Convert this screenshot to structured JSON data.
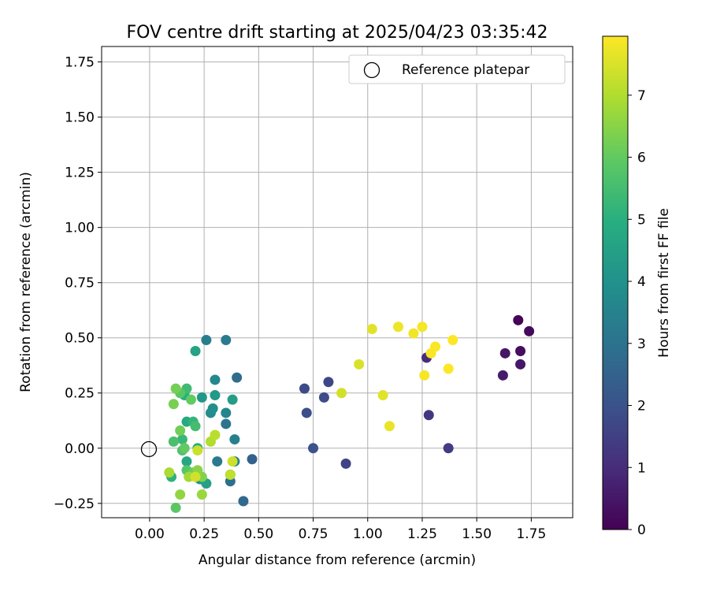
{
  "chart_data": {
    "type": "scatter",
    "title": "FOV centre drift starting at 2025/04/23 03:35:42",
    "xlabel": "Angular distance from reference (arcmin)",
    "ylabel": "Rotation from reference (arcmin)",
    "xlim": [
      -0.22,
      1.94
    ],
    "ylim": [
      -0.315,
      1.82
    ],
    "xticks": [
      "0.00",
      "0.25",
      "0.50",
      "0.75",
      "1.00",
      "1.25",
      "1.50",
      "1.75"
    ],
    "xtick_values": [
      0,
      0.25,
      0.5,
      0.75,
      1.0,
      1.25,
      1.5,
      1.75
    ],
    "yticks": [
      "−0.25",
      "0.00",
      "0.25",
      "0.50",
      "0.75",
      "1.00",
      "1.25",
      "1.50",
      "1.75"
    ],
    "ytick_values": [
      -0.25,
      0,
      0.25,
      0.5,
      0.75,
      1.0,
      1.25,
      1.5,
      1.75
    ],
    "grid": true,
    "legend": {
      "position": "top-right",
      "label": "Reference platepar"
    },
    "reference_point": {
      "x": 0,
      "y": 0
    },
    "colorbar": {
      "label": "Hours from first FF file",
      "colormap": "viridis",
      "range": [
        0,
        7.95
      ],
      "ticks": [
        "0",
        "1",
        "2",
        "3",
        "4",
        "5",
        "6",
        "7"
      ],
      "tick_values": [
        0,
        1,
        2,
        3,
        4,
        5,
        6,
        7
      ]
    },
    "points": [
      {
        "x": 1.69,
        "y": 0.58,
        "hours": 0.1
      },
      {
        "x": 1.74,
        "y": 0.53,
        "hours": 0.2
      },
      {
        "x": 1.7,
        "y": 0.44,
        "hours": 0.3
      },
      {
        "x": 1.63,
        "y": 0.43,
        "hours": 0.45
      },
      {
        "x": 1.7,
        "y": 0.38,
        "hours": 0.5
      },
      {
        "x": 1.62,
        "y": 0.33,
        "hours": 0.6
      },
      {
        "x": 1.27,
        "y": 0.41,
        "hours": 1.0
      },
      {
        "x": 1.28,
        "y": 0.15,
        "hours": 1.3
      },
      {
        "x": 1.37,
        "y": 0.0,
        "hours": 1.4
      },
      {
        "x": 0.9,
        "y": -0.07,
        "hours": 1.6
      },
      {
        "x": 0.82,
        "y": 0.3,
        "hours": 1.7
      },
      {
        "x": 0.71,
        "y": 0.27,
        "hours": 1.8
      },
      {
        "x": 0.8,
        "y": 0.23,
        "hours": 1.85
      },
      {
        "x": 0.72,
        "y": 0.16,
        "hours": 1.9
      },
      {
        "x": 0.75,
        "y": 0.0,
        "hours": 2.0
      },
      {
        "x": 0.47,
        "y": -0.05,
        "hours": 2.5
      },
      {
        "x": 0.43,
        "y": -0.24,
        "hours": 2.7
      },
      {
        "x": 0.4,
        "y": 0.32,
        "hours": 2.8
      },
      {
        "x": 0.37,
        "y": -0.15,
        "hours": 2.9
      },
      {
        "x": 0.35,
        "y": 0.11,
        "hours": 3.0
      },
      {
        "x": 0.31,
        "y": -0.06,
        "hours": 3.2
      },
      {
        "x": 0.35,
        "y": 0.49,
        "hours": 3.3
      },
      {
        "x": 0.26,
        "y": 0.49,
        "hours": 3.4
      },
      {
        "x": 0.39,
        "y": 0.04,
        "hours": 3.4
      },
      {
        "x": 0.39,
        "y": -0.06,
        "hours": 3.5
      },
      {
        "x": 0.35,
        "y": 0.16,
        "hours": 3.6
      },
      {
        "x": 0.3,
        "y": 0.31,
        "hours": 3.7
      },
      {
        "x": 0.28,
        "y": 0.16,
        "hours": 3.8
      },
      {
        "x": 0.29,
        "y": 0.18,
        "hours": 3.9
      },
      {
        "x": 0.37,
        "y": -0.12,
        "hours": 4.0
      },
      {
        "x": 0.23,
        "y": -0.14,
        "hours": 4.1
      },
      {
        "x": 0.24,
        "y": 0.23,
        "hours": 4.2
      },
      {
        "x": 0.3,
        "y": 0.24,
        "hours": 4.3
      },
      {
        "x": 0.38,
        "y": 0.22,
        "hours": 4.4
      },
      {
        "x": 0.26,
        "y": -0.16,
        "hours": 4.5
      },
      {
        "x": 0.21,
        "y": 0.44,
        "hours": 4.6
      },
      {
        "x": 0.17,
        "y": -0.06,
        "hours": 4.7
      },
      {
        "x": 0.17,
        "y": 0.12,
        "hours": 4.8
      },
      {
        "x": 0.22,
        "y": 0.0,
        "hours": 4.9
      },
      {
        "x": 0.16,
        "y": 0.24,
        "hours": 5.0
      },
      {
        "x": 0.1,
        "y": -0.13,
        "hours": 5.1
      },
      {
        "x": 0.2,
        "y": 0.12,
        "hours": 5.2
      },
      {
        "x": 0.15,
        "y": 0.04,
        "hours": 5.3
      },
      {
        "x": 0.17,
        "y": 0.27,
        "hours": 5.4
      },
      {
        "x": 0.21,
        "y": 0.1,
        "hours": 5.5
      },
      {
        "x": 0.11,
        "y": 0.03,
        "hours": 5.6
      },
      {
        "x": 0.15,
        "y": -0.01,
        "hours": 5.7
      },
      {
        "x": 0.17,
        "y": -0.1,
        "hours": 5.8
      },
      {
        "x": 0.14,
        "y": 0.25,
        "hours": 5.85
      },
      {
        "x": 0.12,
        "y": -0.27,
        "hours": 5.9
      },
      {
        "x": 0.19,
        "y": 0.22,
        "hours": 6.0
      },
      {
        "x": 0.16,
        "y": 0.0,
        "hours": 6.0
      },
      {
        "x": 0.2,
        "y": -0.11,
        "hours": 6.1
      },
      {
        "x": 0.14,
        "y": 0.08,
        "hours": 6.2
      },
      {
        "x": 0.12,
        "y": 0.27,
        "hours": 6.25
      },
      {
        "x": 0.11,
        "y": 0.2,
        "hours": 6.3
      },
      {
        "x": 0.24,
        "y": -0.13,
        "hours": 6.4
      },
      {
        "x": 0.22,
        "y": -0.1,
        "hours": 6.5
      },
      {
        "x": 0.14,
        "y": -0.21,
        "hours": 6.6
      },
      {
        "x": 0.24,
        "y": -0.21,
        "hours": 6.7
      },
      {
        "x": 0.18,
        "y": -0.13,
        "hours": 6.8
      },
      {
        "x": 0.09,
        "y": -0.11,
        "hours": 6.9
      },
      {
        "x": 0.28,
        "y": 0.03,
        "hours": 7.0
      },
      {
        "x": 0.3,
        "y": 0.06,
        "hours": 7.1
      },
      {
        "x": 0.37,
        "y": -0.12,
        "hours": 7.2
      },
      {
        "x": 0.22,
        "y": -0.01,
        "hours": 7.3
      },
      {
        "x": 0.38,
        "y": -0.06,
        "hours": 7.35
      },
      {
        "x": 0.21,
        "y": -0.13,
        "hours": 7.4
      },
      {
        "x": 0.88,
        "y": 0.25,
        "hours": 7.4
      },
      {
        "x": 0.96,
        "y": 0.38,
        "hours": 7.5
      },
      {
        "x": 1.02,
        "y": 0.54,
        "hours": 7.6
      },
      {
        "x": 1.07,
        "y": 0.24,
        "hours": 7.6
      },
      {
        "x": 1.1,
        "y": 0.1,
        "hours": 7.7
      },
      {
        "x": 1.14,
        "y": 0.55,
        "hours": 7.75
      },
      {
        "x": 1.21,
        "y": 0.52,
        "hours": 7.8
      },
      {
        "x": 1.25,
        "y": 0.55,
        "hours": 7.85
      },
      {
        "x": 1.26,
        "y": 0.33,
        "hours": 7.85
      },
      {
        "x": 1.29,
        "y": 0.43,
        "hours": 7.9
      },
      {
        "x": 1.31,
        "y": 0.46,
        "hours": 7.9
      },
      {
        "x": 1.37,
        "y": 0.36,
        "hours": 7.95
      },
      {
        "x": 1.39,
        "y": 0.49,
        "hours": 7.95
      }
    ]
  }
}
